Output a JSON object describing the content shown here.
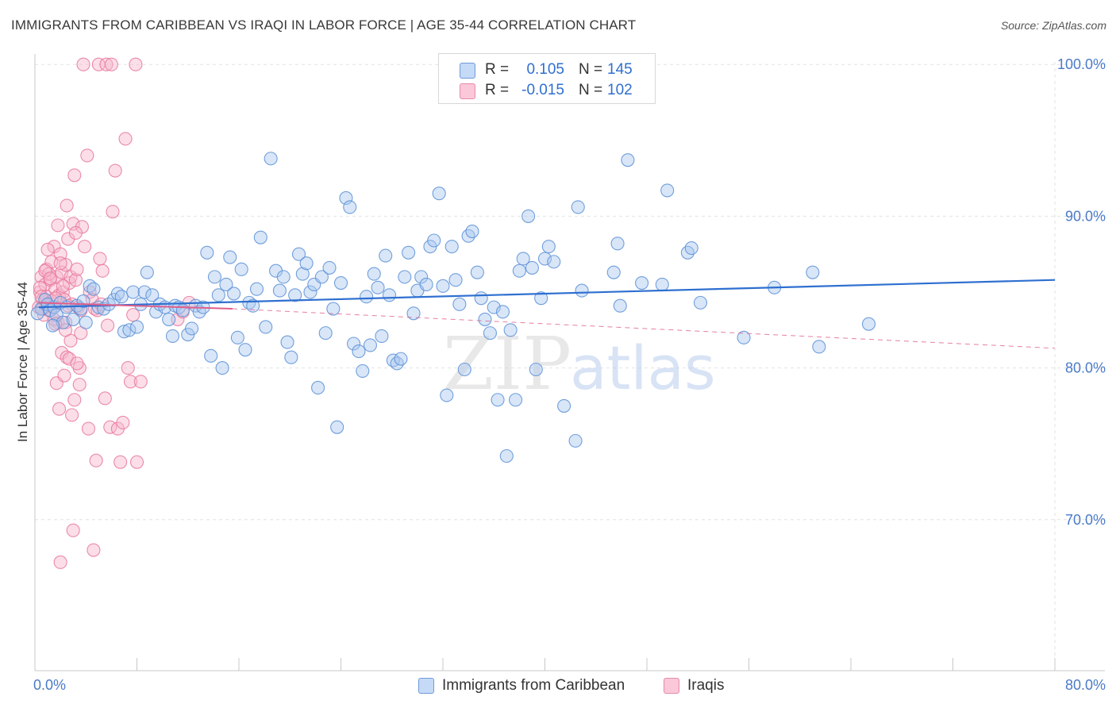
{
  "header": {
    "title": "IMMIGRANTS FROM CARIBBEAN VS IRAQI IN LABOR FORCE | AGE 35-44 CORRELATION CHART",
    "source": "Source: ZipAtlas.com"
  },
  "legend": {
    "rows": [
      {
        "r_label": "R =",
        "r_value": "0.105",
        "n_label": "N =",
        "n_value": "145"
      },
      {
        "r_label": "R =",
        "r_value": "-0.015",
        "n_label": "N =",
        "n_value": "102"
      }
    ]
  },
  "bottom_legend": {
    "items": [
      {
        "label": "Immigrants from Caribbean"
      },
      {
        "label": "Iraqis"
      }
    ]
  },
  "watermark": {
    "zip": "ZIP",
    "atlas": "atlas"
  },
  "colors": {
    "blue_fill": "#a9c8f0",
    "blue_stroke": "#5b8fd6",
    "blue_line": "#2e6fd0",
    "pink_fill": "#f6b6cb",
    "pink_stroke": "#e8789c",
    "pink_line": "#e0608a",
    "tick_text": "#4a7ac8",
    "grid": "#e2e2e2"
  },
  "chart_data": {
    "type": "scatter",
    "title": "IMMIGRANTS FROM CARIBBEAN VS IRAQI IN LABOR FORCE | AGE 35-44 CORRELATION CHART",
    "ylabel": "In Labor Force | Age 35-44",
    "xlabel": "",
    "xlim": [
      0,
      80
    ],
    "ylim": [
      60,
      102
    ],
    "x_tick_labels": [
      "0.0%",
      "80.0%"
    ],
    "y_ticks": [
      70,
      80,
      90,
      100
    ],
    "y_tick_labels": [
      "70.0%",
      "80.0%",
      "90.0%",
      "100.0%"
    ],
    "grid": true,
    "legend_position": "top-center",
    "series": [
      {
        "name": "Immigrants from Caribbean",
        "r": 0.105,
        "n": 145,
        "trend": {
          "x": [
            0.3,
            80
          ],
          "y": [
            84.0,
            85.8
          ],
          "style": "solid"
        },
        "points": [
          [
            0.5,
            83.9
          ],
          [
            0.8,
            84.5
          ],
          [
            1.0,
            84.2
          ],
          [
            1.2,
            83.8
          ],
          [
            1.5,
            84.0
          ],
          [
            1.7,
            83.5
          ],
          [
            2.0,
            84.3
          ],
          [
            2.2,
            83.0
          ],
          [
            2.5,
            84.0
          ],
          [
            3.0,
            83.2
          ],
          [
            3.3,
            84.1
          ],
          [
            3.6,
            83.9
          ],
          [
            4.0,
            83.0
          ],
          [
            4.3,
            85.4
          ],
          [
            4.6,
            85.2
          ],
          [
            5.0,
            84.0
          ],
          [
            5.4,
            83.9
          ],
          [
            5.8,
            84.2
          ],
          [
            6.2,
            84.5
          ],
          [
            6.5,
            84.9
          ],
          [
            6.8,
            84.7
          ],
          [
            7.0,
            82.4
          ],
          [
            7.4,
            82.5
          ],
          [
            7.7,
            85.0
          ],
          [
            8.0,
            82.7
          ],
          [
            8.3,
            84.2
          ],
          [
            8.6,
            85.0
          ],
          [
            8.8,
            86.3
          ],
          [
            9.2,
            84.8
          ],
          [
            9.5,
            83.7
          ],
          [
            9.8,
            84.2
          ],
          [
            10.2,
            84.0
          ],
          [
            10.5,
            83.2
          ],
          [
            10.8,
            82.1
          ],
          [
            11.0,
            84.1
          ],
          [
            11.3,
            84.0
          ],
          [
            11.6,
            83.8
          ],
          [
            12.0,
            82.2
          ],
          [
            12.3,
            82.6
          ],
          [
            12.6,
            84.1
          ],
          [
            12.9,
            83.7
          ],
          [
            13.2,
            84.0
          ],
          [
            13.5,
            87.6
          ],
          [
            13.8,
            80.8
          ],
          [
            14.1,
            86.0
          ],
          [
            14.4,
            84.8
          ],
          [
            14.7,
            80.0
          ],
          [
            15.0,
            85.5
          ],
          [
            15.3,
            87.3
          ],
          [
            15.6,
            84.9
          ],
          [
            15.9,
            82.0
          ],
          [
            16.2,
            86.5
          ],
          [
            16.5,
            81.2
          ],
          [
            16.8,
            84.3
          ],
          [
            17.1,
            84.1
          ],
          [
            17.4,
            85.2
          ],
          [
            17.7,
            88.6
          ],
          [
            18.1,
            82.7
          ],
          [
            18.5,
            93.8
          ],
          [
            18.9,
            86.4
          ],
          [
            19.2,
            85.1
          ],
          [
            19.5,
            86.0
          ],
          [
            19.8,
            81.7
          ],
          [
            20.1,
            80.7
          ],
          [
            20.4,
            84.8
          ],
          [
            20.7,
            87.5
          ],
          [
            21.0,
            86.2
          ],
          [
            21.3,
            86.9
          ],
          [
            21.6,
            85.0
          ],
          [
            21.9,
            85.5
          ],
          [
            22.2,
            78.7
          ],
          [
            22.5,
            86.0
          ],
          [
            22.8,
            82.3
          ],
          [
            23.1,
            86.6
          ],
          [
            23.4,
            83.9
          ],
          [
            23.7,
            76.1
          ],
          [
            24.0,
            85.6
          ],
          [
            24.4,
            91.2
          ],
          [
            24.7,
            90.6
          ],
          [
            25.0,
            81.6
          ],
          [
            25.4,
            81.1
          ],
          [
            25.7,
            79.8
          ],
          [
            26.0,
            84.7
          ],
          [
            26.3,
            81.5
          ],
          [
            26.6,
            86.2
          ],
          [
            26.9,
            85.3
          ],
          [
            27.2,
            82.1
          ],
          [
            27.5,
            87.4
          ],
          [
            27.8,
            84.8
          ],
          [
            28.1,
            80.5
          ],
          [
            28.4,
            80.3
          ],
          [
            28.7,
            80.6
          ],
          [
            29.0,
            86.0
          ],
          [
            29.3,
            87.6
          ],
          [
            29.7,
            83.6
          ],
          [
            30.0,
            85.1
          ],
          [
            30.3,
            86.0
          ],
          [
            30.7,
            85.5
          ],
          [
            31.0,
            88.0
          ],
          [
            31.3,
            88.4
          ],
          [
            31.7,
            91.5
          ],
          [
            32.0,
            85.4
          ],
          [
            32.3,
            78.2
          ],
          [
            32.7,
            88.0
          ],
          [
            33.0,
            85.8
          ],
          [
            33.3,
            84.2
          ],
          [
            33.7,
            79.9
          ],
          [
            34.0,
            88.7
          ],
          [
            34.3,
            89.0
          ],
          [
            34.7,
            86.3
          ],
          [
            35.0,
            84.6
          ],
          [
            35.3,
            83.2
          ],
          [
            35.7,
            82.3
          ],
          [
            36.0,
            84.0
          ],
          [
            36.3,
            77.9
          ],
          [
            36.7,
            83.7
          ],
          [
            37.0,
            74.2
          ],
          [
            37.3,
            82.5
          ],
          [
            37.7,
            77.9
          ],
          [
            38.0,
            86.4
          ],
          [
            38.3,
            87.2
          ],
          [
            38.7,
            90.0
          ],
          [
            39.0,
            86.6
          ],
          [
            39.3,
            79.9
          ],
          [
            39.7,
            84.6
          ],
          [
            40.0,
            87.2
          ],
          [
            40.3,
            88.0
          ],
          [
            40.7,
            87.0
          ],
          [
            41.5,
            77.5
          ],
          [
            42.4,
            75.2
          ],
          [
            42.6,
            90.6
          ],
          [
            42.9,
            85.1
          ],
          [
            45.4,
            86.3
          ],
          [
            45.7,
            88.2
          ],
          [
            45.9,
            84.1
          ],
          [
            46.5,
            93.7
          ],
          [
            47.6,
            85.6
          ],
          [
            49.2,
            85.5
          ],
          [
            49.6,
            91.7
          ],
          [
            51.2,
            87.6
          ],
          [
            51.5,
            87.9
          ],
          [
            52.2,
            84.3
          ],
          [
            55.6,
            82.0
          ],
          [
            58.0,
            85.3
          ],
          [
            61.0,
            86.3
          ],
          [
            61.5,
            81.4
          ],
          [
            65.4,
            82.9
          ],
          [
            0.2,
            83.6
          ],
          [
            1.4,
            82.8
          ],
          [
            3.8,
            84.4
          ]
        ]
      },
      {
        "name": "Iraqis",
        "r": -0.015,
        "n": 102,
        "trend": {
          "x": [
            0.3,
            15.5
          ],
          "y": [
            84.3,
            83.9
          ],
          "style": "solid",
          "extension": {
            "x": [
              15.5,
              80
            ],
            "y": [
              83.9,
              81.3
            ],
            "style": "dashed"
          }
        },
        "points": [
          [
            0.3,
            84.0
          ],
          [
            0.4,
            85.0
          ],
          [
            0.5,
            86.0
          ],
          [
            0.6,
            84.5
          ],
          [
            0.7,
            83.5
          ],
          [
            0.8,
            85.5
          ],
          [
            0.9,
            86.5
          ],
          [
            1.0,
            84.2
          ],
          [
            1.1,
            83.8
          ],
          [
            1.2,
            85.8
          ],
          [
            1.3,
            87.0
          ],
          [
            1.4,
            84.0
          ],
          [
            1.5,
            88.0
          ],
          [
            1.6,
            85.2
          ],
          [
            1.7,
            86.0
          ],
          [
            1.8,
            83.0
          ],
          [
            1.9,
            84.8
          ],
          [
            2.0,
            87.5
          ],
          [
            2.1,
            86.3
          ],
          [
            2.2,
            85.0
          ],
          [
            2.3,
            84.5
          ],
          [
            2.4,
            86.8
          ],
          [
            2.5,
            90.7
          ],
          [
            2.6,
            88.5
          ],
          [
            2.7,
            85.6
          ],
          [
            2.8,
            86.0
          ],
          [
            2.9,
            84.2
          ],
          [
            3.0,
            89.5
          ],
          [
            3.1,
            92.7
          ],
          [
            3.2,
            85.8
          ],
          [
            3.3,
            86.5
          ],
          [
            3.4,
            84.0
          ],
          [
            3.5,
            80.0
          ],
          [
            3.6,
            83.8
          ],
          [
            0.4,
            85.3
          ],
          [
            0.6,
            83.9
          ],
          [
            0.9,
            84.7
          ],
          [
            1.1,
            86.2
          ],
          [
            1.3,
            84.4
          ],
          [
            1.5,
            83.2
          ],
          [
            1.7,
            79.0
          ],
          [
            1.9,
            77.3
          ],
          [
            2.1,
            81.0
          ],
          [
            2.3,
            79.5
          ],
          [
            2.5,
            80.7
          ],
          [
            2.7,
            80.6
          ],
          [
            2.9,
            76.9
          ],
          [
            3.1,
            77.9
          ],
          [
            3.3,
            80.3
          ],
          [
            3.5,
            78.9
          ],
          [
            3.7,
            89.3
          ],
          [
            3.9,
            88.0
          ],
          [
            4.1,
            94.0
          ],
          [
            4.3,
            85.0
          ],
          [
            4.5,
            84.5
          ],
          [
            4.7,
            83.9
          ],
          [
            4.9,
            83.8
          ],
          [
            5.1,
            87.2
          ],
          [
            5.3,
            86.4
          ],
          [
            5.5,
            78.0
          ],
          [
            5.7,
            82.8
          ],
          [
            5.9,
            76.1
          ],
          [
            6.1,
            90.3
          ],
          [
            6.3,
            93.0
          ],
          [
            6.5,
            76.0
          ],
          [
            6.7,
            73.8
          ],
          [
            6.9,
            76.4
          ],
          [
            7.1,
            95.1
          ],
          [
            7.3,
            80.0
          ],
          [
            7.5,
            79.1
          ],
          [
            7.7,
            83.5
          ],
          [
            8.0,
            73.8
          ],
          [
            8.3,
            79.1
          ],
          [
            4.6,
            68.0
          ],
          [
            3.0,
            69.3
          ],
          [
            2.0,
            67.2
          ],
          [
            3.8,
            100.0
          ],
          [
            5.0,
            100.0
          ],
          [
            5.6,
            100.0
          ],
          [
            6.0,
            100.0
          ],
          [
            7.9,
            100.0
          ],
          [
            2.4,
            83.0
          ],
          [
            1.6,
            82.9
          ],
          [
            2.8,
            81.8
          ],
          [
            3.6,
            82.3
          ],
          [
            4.2,
            76.0
          ],
          [
            4.8,
            73.9
          ],
          [
            5.2,
            84.2
          ],
          [
            0.8,
            86.4
          ],
          [
            1.2,
            85.9
          ],
          [
            1.6,
            84.6
          ],
          [
            2.2,
            85.4
          ],
          [
            2.6,
            84.1
          ],
          [
            3.2,
            88.9
          ],
          [
            0.5,
            84.7
          ],
          [
            1.0,
            87.8
          ],
          [
            1.8,
            89.4
          ],
          [
            2.0,
            86.9
          ],
          [
            2.4,
            82.5
          ],
          [
            11.2,
            83.2
          ],
          [
            11.6,
            83.7
          ],
          [
            12.1,
            84.3
          ]
        ]
      }
    ]
  }
}
